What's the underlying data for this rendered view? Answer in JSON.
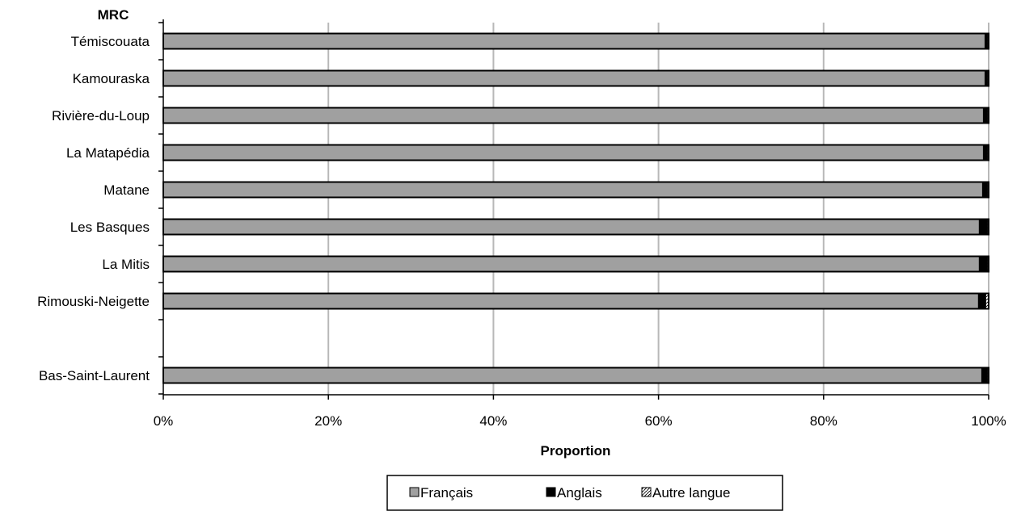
{
  "chart_data": {
    "type": "bar",
    "orientation": "horizontal",
    "stacking": "percent",
    "yaxis_title": "MRC",
    "xlabel": "Proportion",
    "categories": [
      "Témiscouata",
      "Kamouraska",
      "Rivière-du-Loup",
      "La Matapédia",
      "Matane",
      "Les Basques",
      "La Mitis",
      "Rimouski-Neigette",
      "",
      "Bas-Saint-Laurent"
    ],
    "series": [
      {
        "name": "Français",
        "color": "#a0a0a0",
        "values": [
          99.5,
          99.5,
          99.3,
          99.3,
          99.2,
          98.8,
          98.8,
          98.7,
          null,
          99.1
        ]
      },
      {
        "name": "Anglais",
        "color": "#000000",
        "values": [
          0.4,
          0.4,
          0.6,
          0.6,
          0.7,
          1.1,
          1.1,
          1.0,
          null,
          0.8
        ]
      },
      {
        "name": "Autre langue",
        "color": "#d8d8d8",
        "pattern": "hatched",
        "values": [
          0.1,
          0.1,
          0.1,
          0.1,
          0.1,
          0.1,
          0.1,
          0.3,
          null,
          0.1
        ]
      }
    ],
    "xlim": [
      0,
      100
    ],
    "xticks": [
      "0%",
      "20%",
      "40%",
      "60%",
      "80%",
      "100%"
    ],
    "grid": true,
    "legend_position": "bottom"
  }
}
